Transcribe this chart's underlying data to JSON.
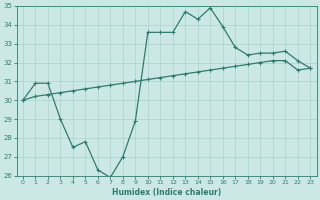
{
  "xlabel": "Humidex (Indice chaleur)",
  "x_values": [
    0,
    1,
    2,
    3,
    4,
    5,
    6,
    7,
    8,
    9,
    10,
    11,
    12,
    13,
    14,
    15,
    16,
    17,
    18,
    19,
    20,
    21,
    22,
    23
  ],
  "series_upper": [
    30.0,
    30.9,
    30.9,
    29.0,
    27.5,
    27.8,
    26.3,
    25.9,
    27.0,
    28.9,
    33.6,
    33.6,
    33.6,
    34.7,
    34.3,
    34.9,
    33.9,
    32.8,
    32.4,
    32.5,
    32.5,
    32.6,
    32.1,
    31.7
  ],
  "series_lower": [
    30.0,
    30.2,
    30.3,
    30.4,
    30.5,
    30.6,
    30.7,
    30.8,
    30.9,
    31.0,
    31.1,
    31.2,
    31.3,
    31.4,
    31.5,
    31.6,
    31.7,
    31.8,
    31.9,
    32.0,
    32.1,
    32.1,
    31.6,
    31.7
  ],
  "ylim": [
    26,
    35
  ],
  "yticks": [
    26,
    27,
    28,
    29,
    30,
    31,
    32,
    33,
    34,
    35
  ],
  "xticks": [
    0,
    1,
    2,
    3,
    4,
    5,
    6,
    7,
    8,
    9,
    10,
    11,
    12,
    13,
    14,
    15,
    16,
    17,
    18,
    19,
    20,
    21,
    22,
    23
  ],
  "line_color": "#2d7d6e",
  "bg_color": "#cce8e4",
  "grid_color": "#a8d5cc",
  "spine_color": "#2d7d6e"
}
